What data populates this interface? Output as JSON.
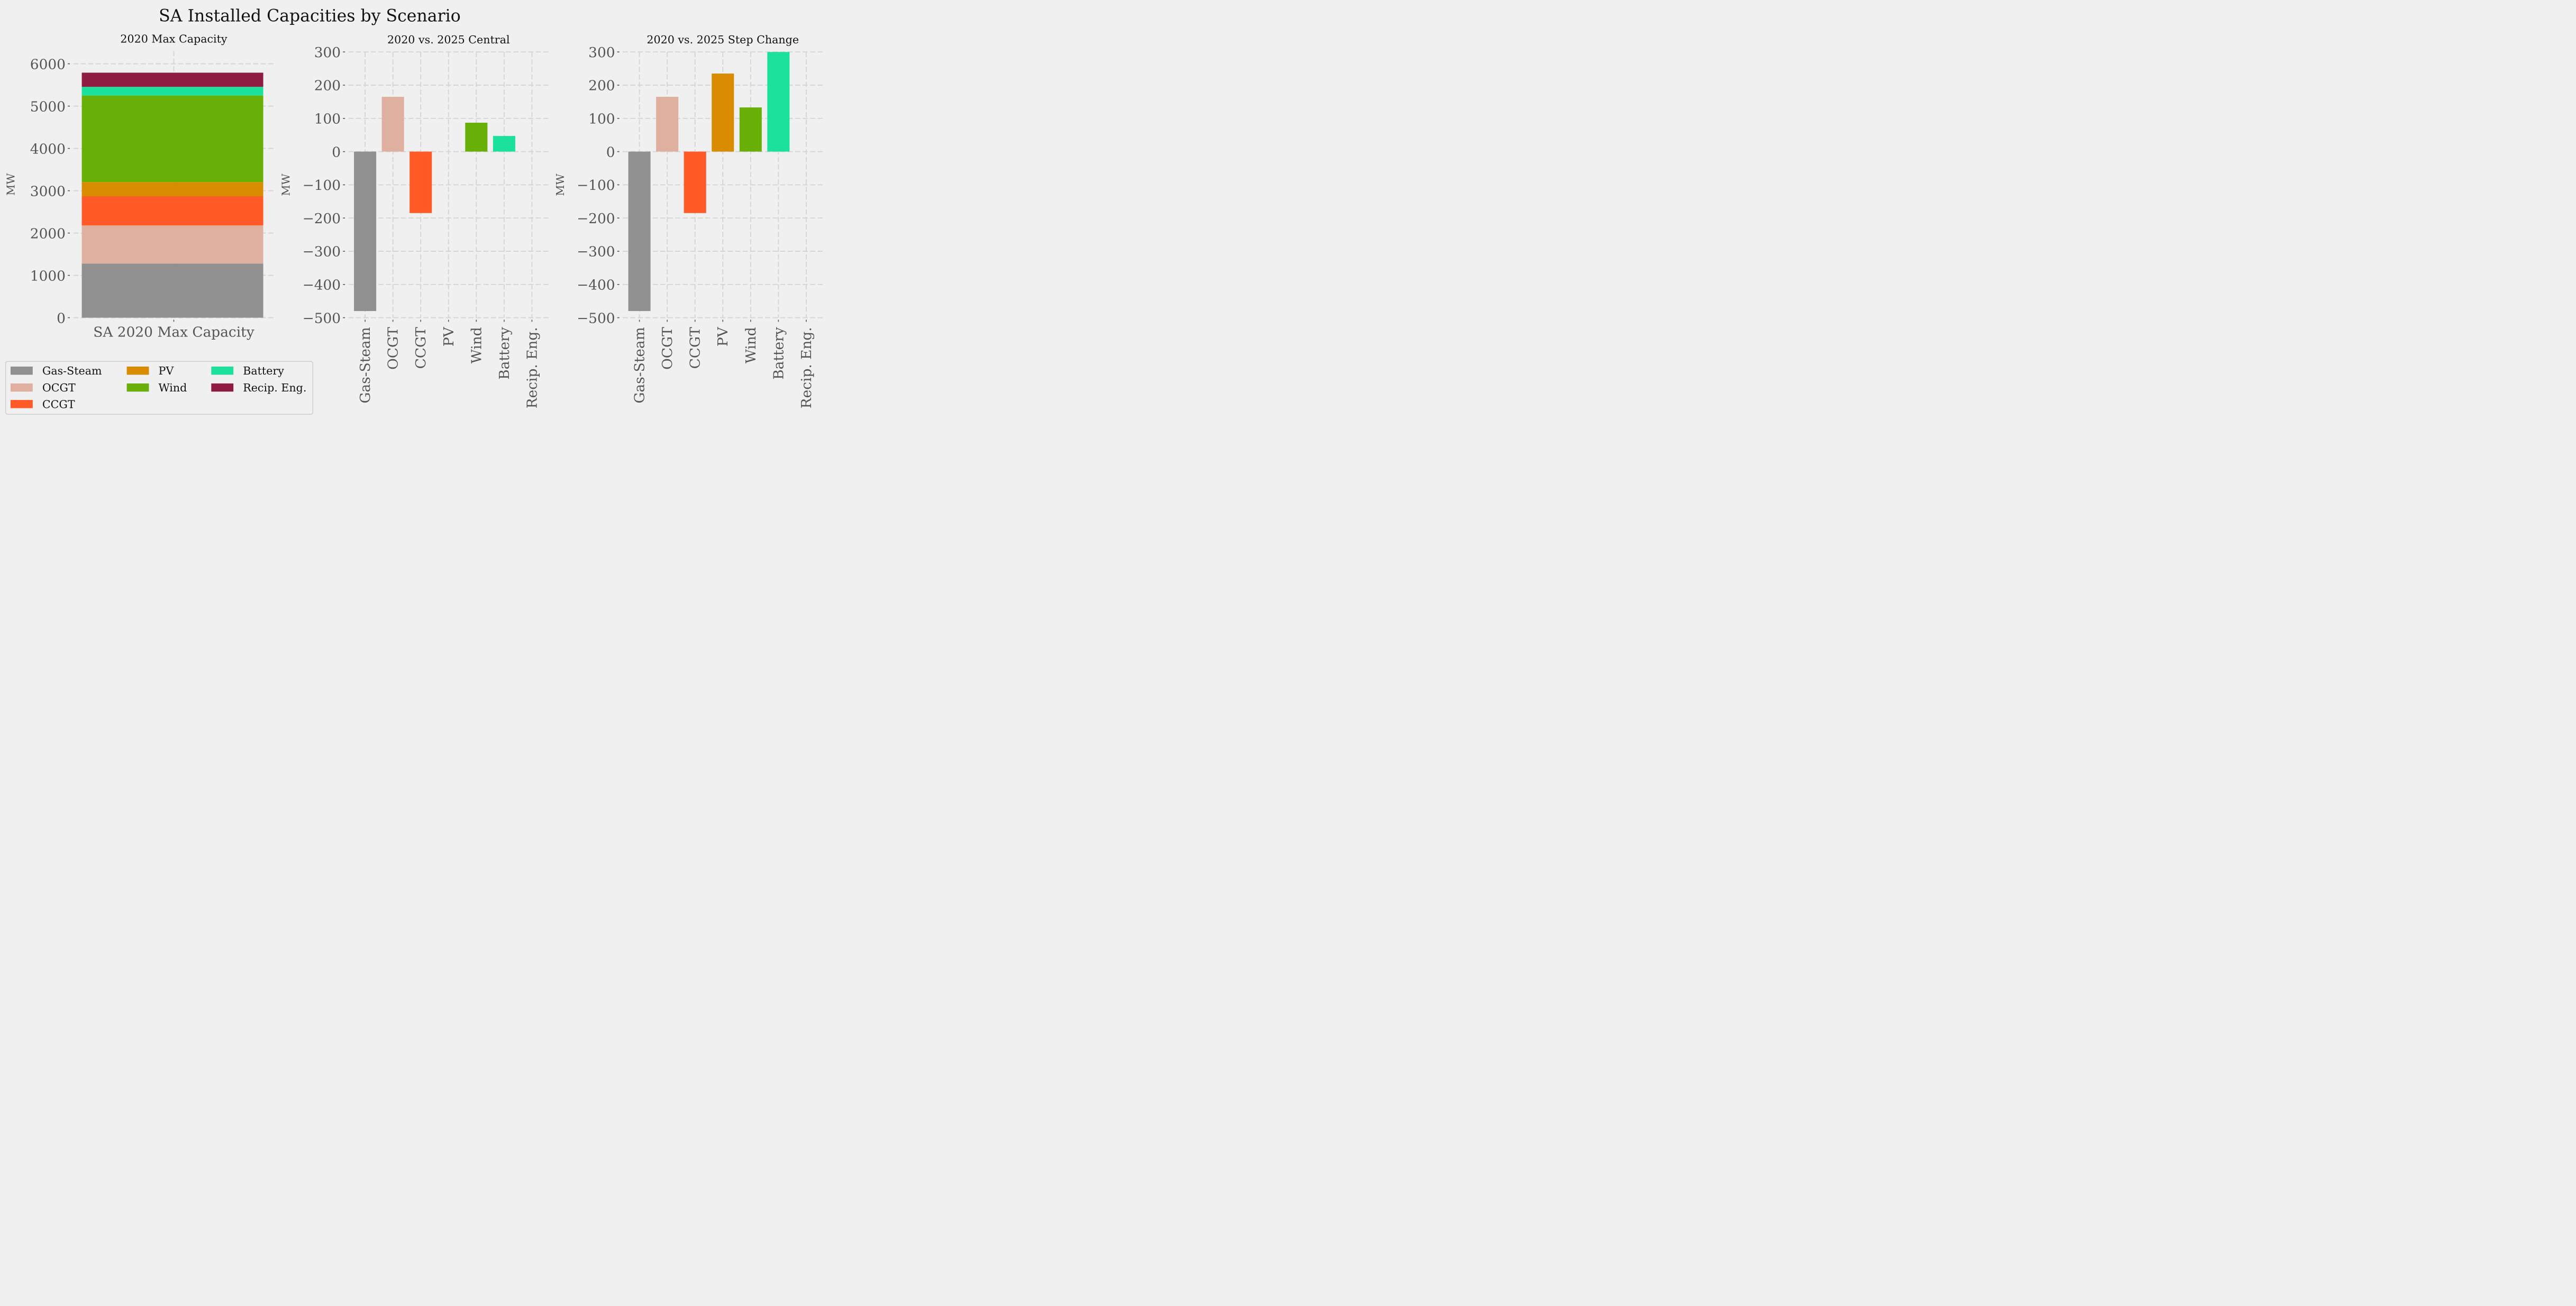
{
  "figure_title": "SA Installed Capacities by Scenario",
  "categories": [
    "Gas-Steam",
    "OCGT",
    "CCGT",
    "PV",
    "Wind",
    "Battery",
    "Recip. Eng."
  ],
  "colors": {
    "Gas-Steam": "#909090",
    "OCGT": "#dfaf9f",
    "CCGT": "#ff5a27",
    "PV": "#d98c00",
    "Wind": "#68af08",
    "Battery": "#1ce19b",
    "Recip. Eng.": "#8f1a42",
    "background": "#f0f0f0",
    "grid": "#d5d5d5"
  },
  "legend": {
    "placement": "bottom-left",
    "entries": [
      "Gas-Steam",
      "OCGT",
      "CCGT",
      "PV",
      "Wind",
      "Battery",
      "Recip. Eng."
    ]
  },
  "chart_data": [
    {
      "type": "bar",
      "stacked": true,
      "title": "2020 Max Capacity",
      "ylabel": "MW",
      "xlabel": "",
      "ylim": [
        0,
        6300
      ],
      "yticks": [
        0,
        1000,
        2000,
        3000,
        4000,
        5000,
        6000
      ],
      "categories": [
        "SA 2020 Max Capacity"
      ],
      "series": [
        {
          "name": "Gas-Steam",
          "values": [
            1280
          ]
        },
        {
          "name": "OCGT",
          "values": [
            900
          ]
        },
        {
          "name": "CCGT",
          "values": [
            690
          ]
        },
        {
          "name": "PV",
          "values": [
            335
          ]
        },
        {
          "name": "Wind",
          "values": [
            2045
          ]
        },
        {
          "name": "Battery",
          "values": [
            205
          ]
        },
        {
          "name": "Recip. Eng.",
          "values": [
            335
          ]
        }
      ],
      "grid": true
    },
    {
      "type": "bar",
      "title": "2020 vs. 2025 Central",
      "ylabel": "MW",
      "xlabel": "",
      "ylim": [
        -500,
        300
      ],
      "yticks": [
        -500,
        -400,
        -300,
        -200,
        -100,
        0,
        100,
        200,
        300
      ],
      "categories": [
        "Gas-Steam",
        "OCGT",
        "CCGT",
        "PV",
        "Wind",
        "Battery",
        "Recip. Eng."
      ],
      "values": [
        -480,
        165,
        -185,
        0,
        87,
        47,
        0
      ],
      "grid": true
    },
    {
      "type": "bar",
      "title": "2020 vs. 2025 Step Change",
      "ylabel": "MW",
      "xlabel": "",
      "ylim": [
        -500,
        300
      ],
      "yticks": [
        -500,
        -400,
        -300,
        -200,
        -100,
        0,
        100,
        200,
        300
      ],
      "categories": [
        "Gas-Steam",
        "OCGT",
        "CCGT",
        "PV",
        "Wind",
        "Battery",
        "Recip. Eng."
      ],
      "values": [
        -480,
        165,
        -185,
        235,
        133,
        300,
        0
      ],
      "grid": true
    }
  ]
}
